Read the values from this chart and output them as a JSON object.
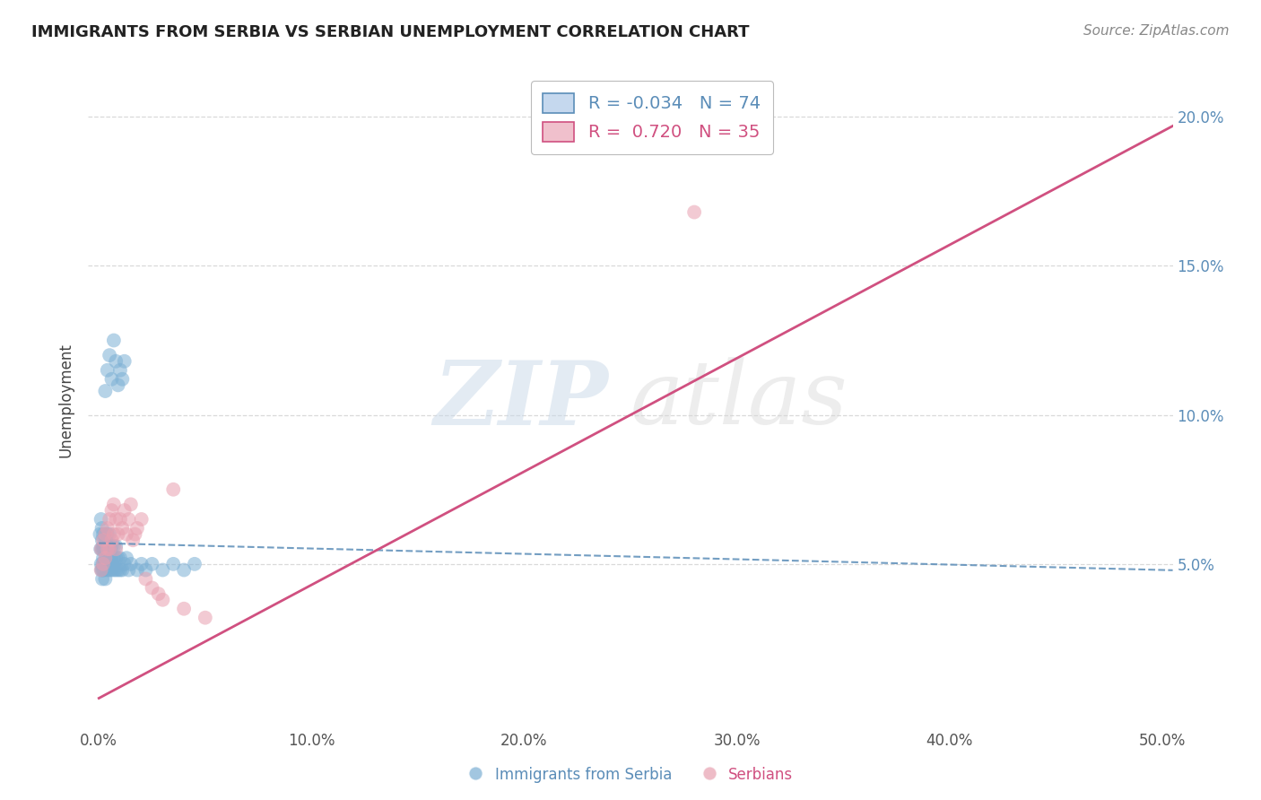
{
  "title": "IMMIGRANTS FROM SERBIA VS SERBIAN UNEMPLOYMENT CORRELATION CHART",
  "source": "Source: ZipAtlas.com",
  "ylabel": "Unemployment",
  "xlim": [
    -0.005,
    0.505
  ],
  "ylim": [
    -0.005,
    0.215
  ],
  "xticks": [
    0.0,
    0.1,
    0.2,
    0.3,
    0.4,
    0.5
  ],
  "xticklabels": [
    "0.0%",
    "10.0%",
    "20.0%",
    "30.0%",
    "40.0%",
    "50.0%"
  ],
  "yticks": [
    0.05,
    0.1,
    0.15,
    0.2
  ],
  "yticklabels": [
    "5.0%",
    "10.0%",
    "15.0%",
    "20.0%"
  ],
  "legend1_label": "Immigrants from Serbia",
  "legend2_label": "Serbians",
  "r1": "-0.034",
  "n1": "74",
  "r2": "0.720",
  "n2": "35",
  "blue_color": "#7bafd4",
  "pink_color": "#e8a0b0",
  "blue_line_color": "#5b8db8",
  "pink_line_color": "#d05080",
  "watermark_zip": "ZIP",
  "watermark_atlas": "atlas",
  "background_color": "#ffffff",
  "grid_color": "#d0d0d0",
  "blue_slope": -0.018,
  "blue_intercept": 0.057,
  "pink_slope": 0.38,
  "pink_intercept": 0.005,
  "blue_x": [
    0.0005,
    0.0008,
    0.001,
    0.001,
    0.0012,
    0.0013,
    0.0014,
    0.0015,
    0.0015,
    0.0016,
    0.0017,
    0.0018,
    0.002,
    0.002,
    0.002,
    0.002,
    0.0022,
    0.0023,
    0.0025,
    0.0025,
    0.003,
    0.003,
    0.003,
    0.003,
    0.0032,
    0.0035,
    0.004,
    0.004,
    0.004,
    0.004,
    0.0042,
    0.0045,
    0.005,
    0.005,
    0.005,
    0.005,
    0.0052,
    0.0055,
    0.006,
    0.006,
    0.006,
    0.0065,
    0.007,
    0.007,
    0.007,
    0.008,
    0.008,
    0.008,
    0.009,
    0.009,
    0.01,
    0.01,
    0.011,
    0.012,
    0.013,
    0.014,
    0.015,
    0.018,
    0.02,
    0.022,
    0.025,
    0.03,
    0.035,
    0.04,
    0.045,
    0.003,
    0.004,
    0.005,
    0.006,
    0.007,
    0.008,
    0.009,
    0.01,
    0.011,
    0.012
  ],
  "blue_y": [
    0.06,
    0.055,
    0.05,
    0.065,
    0.048,
    0.055,
    0.062,
    0.048,
    0.058,
    0.045,
    0.05,
    0.055,
    0.048,
    0.052,
    0.056,
    0.06,
    0.05,
    0.055,
    0.048,
    0.055,
    0.05,
    0.055,
    0.06,
    0.045,
    0.052,
    0.058,
    0.048,
    0.052,
    0.056,
    0.06,
    0.05,
    0.055,
    0.048,
    0.052,
    0.056,
    0.06,
    0.05,
    0.055,
    0.048,
    0.052,
    0.056,
    0.05,
    0.048,
    0.052,
    0.056,
    0.048,
    0.052,
    0.056,
    0.048,
    0.052,
    0.048,
    0.052,
    0.048,
    0.05,
    0.052,
    0.048,
    0.05,
    0.048,
    0.05,
    0.048,
    0.05,
    0.048,
    0.05,
    0.048,
    0.05,
    0.108,
    0.115,
    0.12,
    0.112,
    0.125,
    0.118,
    0.11,
    0.115,
    0.112,
    0.118
  ],
  "pink_x": [
    0.001,
    0.001,
    0.002,
    0.002,
    0.003,
    0.003,
    0.004,
    0.004,
    0.005,
    0.005,
    0.006,
    0.006,
    0.007,
    0.007,
    0.008,
    0.008,
    0.009,
    0.01,
    0.011,
    0.012,
    0.013,
    0.014,
    0.015,
    0.016,
    0.017,
    0.018,
    0.02,
    0.022,
    0.025,
    0.028,
    0.03,
    0.035,
    0.04,
    0.28,
    0.05
  ],
  "pink_y": [
    0.048,
    0.055,
    0.05,
    0.058,
    0.052,
    0.06,
    0.055,
    0.062,
    0.055,
    0.065,
    0.058,
    0.068,
    0.06,
    0.07,
    0.055,
    0.065,
    0.06,
    0.065,
    0.062,
    0.068,
    0.06,
    0.065,
    0.07,
    0.058,
    0.06,
    0.062,
    0.065,
    0.045,
    0.042,
    0.04,
    0.038,
    0.075,
    0.035,
    0.168,
    0.032
  ]
}
